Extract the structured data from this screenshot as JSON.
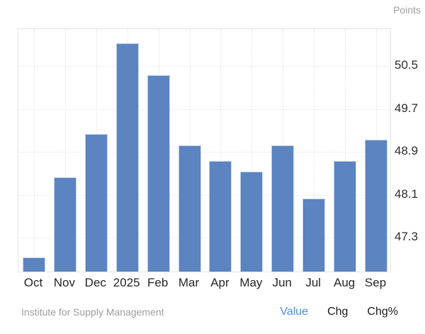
{
  "chart": {
    "units_label": "Points"
  },
  "footer": {
    "attribution": "Institute for Supply Management",
    "links": [
      {
        "label": "Value",
        "active": true
      },
      {
        "label": "Chg",
        "active": false
      },
      {
        "label": "Chg%",
        "active": false
      }
    ]
  },
  "colors": {
    "bar_fill": "#5b84c0",
    "bar_border": "rgba(255,255,255,0.65)",
    "grid": "#e4e4e4",
    "axis_text": "#2d2d2d",
    "muted_text": "#9e9e9e",
    "active_link": "#4a8ceb",
    "link_text": "#1a1a1a"
  },
  "chart_data": {
    "type": "bar",
    "title": "",
    "categories": [
      "Oct",
      "Nov",
      "Dec",
      "2025",
      "Feb",
      "Mar",
      "Apr",
      "May",
      "Jun",
      "Jul",
      "Aug",
      "Sep"
    ],
    "values": [
      46.9,
      48.4,
      49.2,
      50.9,
      50.3,
      49.0,
      48.7,
      48.5,
      49.0,
      48.0,
      48.7,
      49.1
    ],
    "xlabel": "",
    "ylabel": "Points",
    "ylim": [
      46.64,
      51.19
    ],
    "yticks": [
      50.5,
      49.7,
      48.9,
      48.1,
      47.3
    ],
    "grid": true,
    "legend": false
  }
}
